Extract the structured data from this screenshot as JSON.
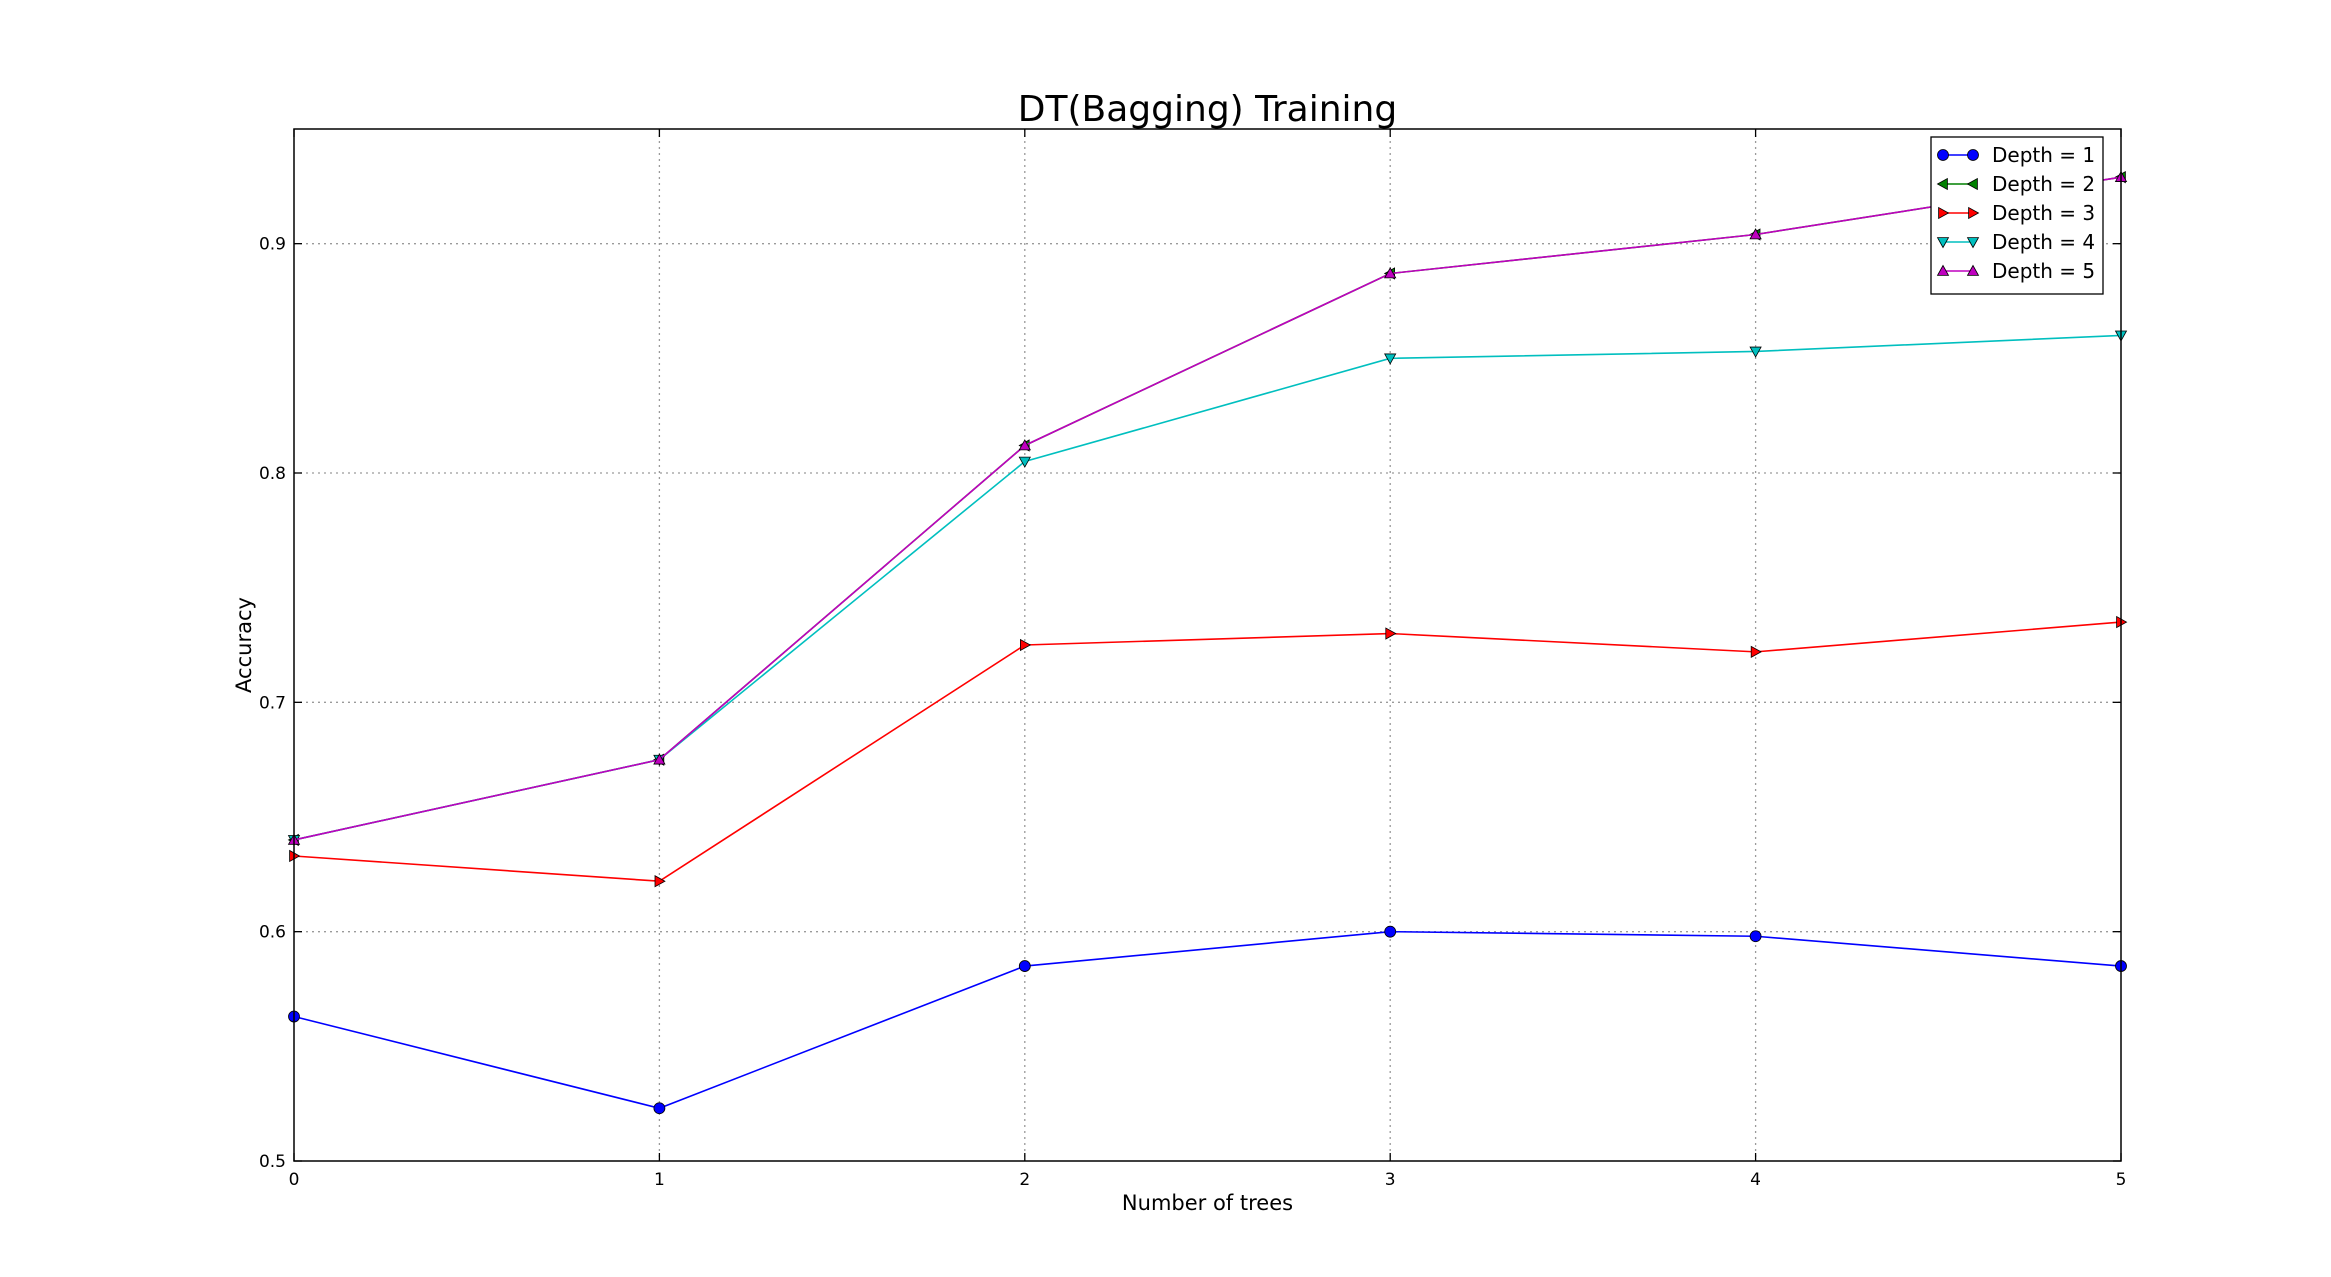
{
  "chart_data": {
    "type": "line",
    "title": "DT(Bagging) Training",
    "xlabel": "Number of trees",
    "ylabel": "Accuracy",
    "xlim": [
      0,
      5
    ],
    "ylim": [
      0.5,
      0.95
    ],
    "x": [
      0,
      1,
      2,
      3,
      4,
      5
    ],
    "xticks": [
      "0",
      "1",
      "2",
      "3",
      "4",
      "5"
    ],
    "yticks": [
      0.5,
      0.6,
      0.7,
      0.8,
      0.9
    ],
    "ytick_labels": [
      "0.5",
      "0.6",
      "0.7",
      "0.8",
      "0.9"
    ],
    "grid": true,
    "legend_position": "top-right",
    "series": [
      {
        "name": "Depth = 1",
        "color": "#0000ff",
        "marker": "circle",
        "values": [
          0.563,
          0.523,
          0.585,
          0.6,
          0.598,
          0.585
        ]
      },
      {
        "name": "Depth = 2",
        "color": "#008000",
        "marker": "triangle-left",
        "values": [
          0.64,
          0.675,
          0.812,
          0.887,
          0.904,
          0.929
        ]
      },
      {
        "name": "Depth = 3",
        "color": "#ff0000",
        "marker": "triangle-right",
        "values": [
          0.633,
          0.622,
          0.725,
          0.73,
          0.722,
          0.735
        ]
      },
      {
        "name": "Depth = 4",
        "color": "#00bfbf",
        "marker": "triangle-down",
        "values": [
          0.64,
          0.675,
          0.805,
          0.85,
          0.853,
          0.86
        ]
      },
      {
        "name": "Depth = 5",
        "color": "#bf00bf",
        "marker": "triangle-up",
        "values": [
          0.64,
          0.675,
          0.812,
          0.887,
          0.904,
          0.929
        ]
      }
    ]
  }
}
